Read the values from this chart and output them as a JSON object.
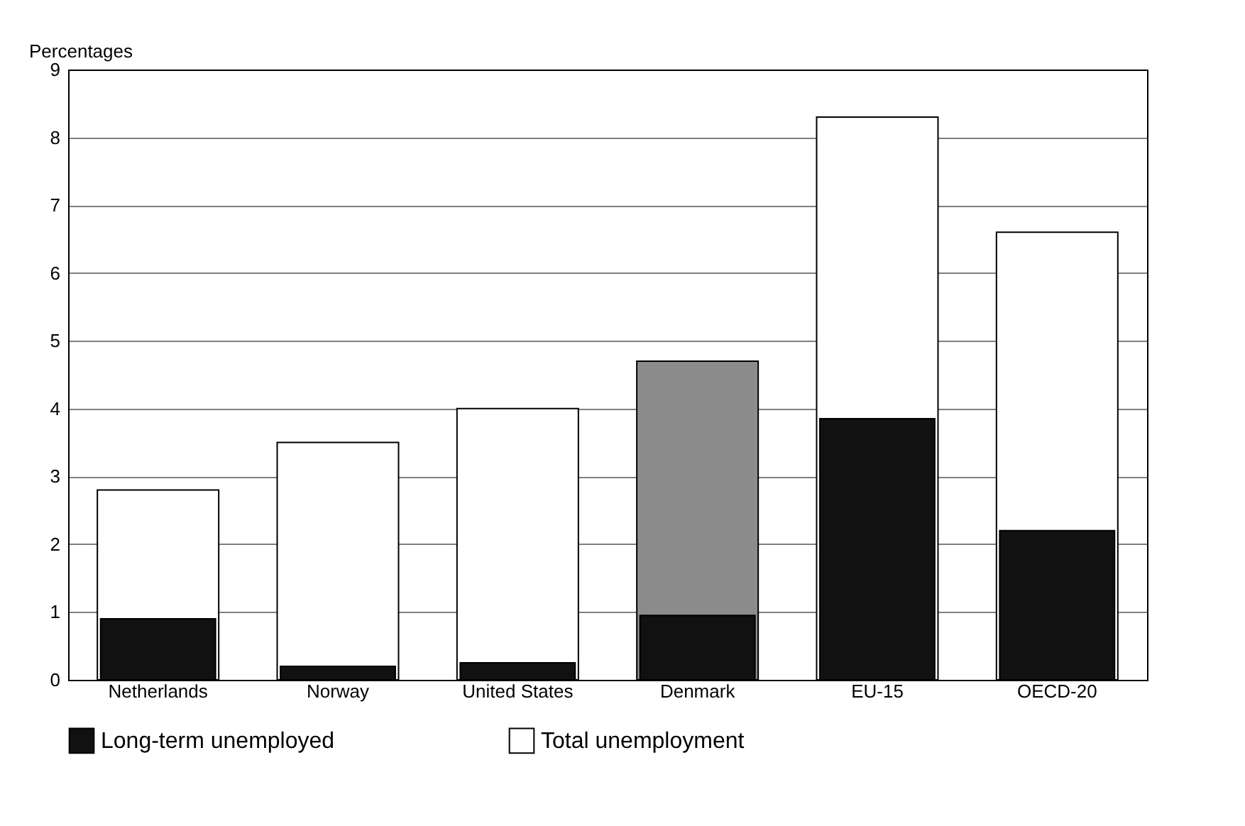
{
  "chart_data": {
    "type": "bar",
    "ylabel": "Percentages",
    "categories": [
      "Netherlands",
      "Norway",
      "United States",
      "Denmark",
      "EU-15",
      "OECD-20"
    ],
    "series": [
      {
        "name": "Total unemployment",
        "color": "#ffffff",
        "colors": [
          "#ffffff",
          "#ffffff",
          "#ffffff",
          "#8c8c8c",
          "#ffffff",
          "#ffffff"
        ],
        "values": [
          2.8,
          3.5,
          4.0,
          4.7,
          8.3,
          6.6
        ]
      },
      {
        "name": "Long-term unemployed",
        "color": "#111111",
        "values": [
          0.9,
          0.2,
          0.25,
          0.95,
          3.85,
          2.2
        ]
      }
    ],
    "ylim": [
      0,
      9
    ],
    "yticks": [
      0,
      1,
      2,
      3,
      4,
      5,
      6,
      7,
      8,
      9
    ],
    "grid": "y",
    "legend": "bottom"
  }
}
